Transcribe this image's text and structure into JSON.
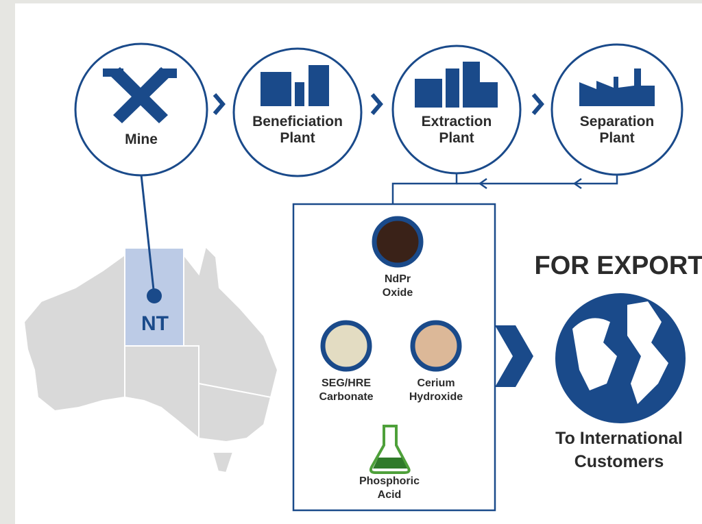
{
  "stages": [
    {
      "label": [
        "Mine"
      ]
    },
    {
      "label": [
        "Beneficiation",
        "Plant"
      ]
    },
    {
      "label": [
        "Extraction",
        "Plant"
      ]
    },
    {
      "label": [
        "Separation",
        "Plant"
      ]
    }
  ],
  "region": "NT",
  "products": [
    {
      "label": [
        "NdPr",
        "Oxide"
      ]
    },
    {
      "label": [
        "SEG/HRE",
        "Carbonate"
      ]
    },
    {
      "label": [
        "Cerium",
        "Hydroxide"
      ]
    },
    {
      "label": [
        "Phosphoric",
        "Acid"
      ]
    }
  ],
  "export": {
    "title": "FOR EXPORT",
    "subtitle": [
      "To International",
      "Customers"
    ]
  }
}
